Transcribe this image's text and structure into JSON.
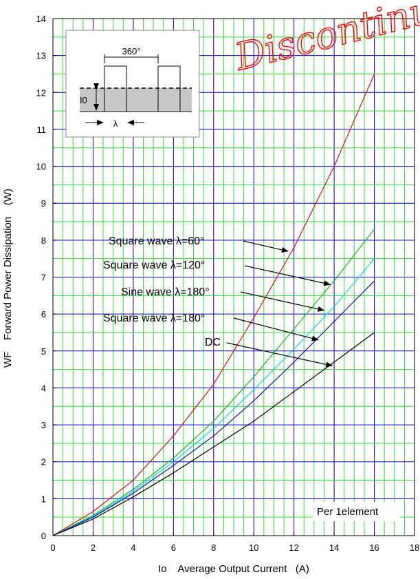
{
  "chart_data": {
    "type": "line",
    "xlabel": "Io    Average Output Current   (A)",
    "ylabel": "WF    Forward Power Dissipation    (W)",
    "xlim": [
      0,
      18
    ],
    "ylim": [
      0,
      14
    ],
    "x_ticks": [
      "0",
      "2",
      "4",
      "6",
      "8",
      "10",
      "12",
      "14",
      "16",
      "18"
    ],
    "y_ticks": [
      "0",
      "1",
      "2",
      "3",
      "4",
      "5",
      "6",
      "7",
      "8",
      "9",
      "10",
      "11",
      "12",
      "13",
      "14"
    ],
    "grid": true,
    "minor_grid_color": "#33dd33",
    "major_grid_color": "#0000cc",
    "series": [
      {
        "name": "Square wave  λ=60°",
        "color": "#e01010",
        "x": [
          0,
          2,
          4,
          6,
          8,
          10,
          12,
          14,
          16
        ],
        "y": [
          0,
          0.65,
          1.5,
          2.7,
          4.1,
          5.9,
          7.8,
          10.0,
          12.5
        ]
      },
      {
        "name": "Square wave  λ=120°",
        "color": "#10c010",
        "x": [
          0,
          2,
          4,
          6,
          8,
          10,
          12,
          14,
          16
        ],
        "y": [
          0,
          0.55,
          1.25,
          2.1,
          3.1,
          4.3,
          5.6,
          6.9,
          8.3
        ]
      },
      {
        "name": "Sine wave  λ=180°",
        "color": "#00d8f0",
        "x": [
          0,
          2,
          4,
          6,
          8,
          10,
          12,
          14,
          16
        ],
        "y": [
          0,
          0.52,
          1.2,
          2.0,
          2.9,
          3.95,
          5.05,
          6.2,
          7.5
        ]
      },
      {
        "name": "Square wave  λ=180°",
        "color": "#1010c8",
        "x": [
          0,
          2,
          4,
          6,
          8,
          10,
          12,
          14,
          16
        ],
        "y": [
          0,
          0.5,
          1.15,
          1.9,
          2.7,
          3.65,
          4.7,
          5.8,
          6.9
        ]
      },
      {
        "name": "DC",
        "color": "#000000",
        "x": [
          0,
          2,
          4,
          6,
          8,
          10,
          12,
          14,
          16
        ],
        "y": [
          0,
          0.45,
          1.05,
          1.7,
          2.4,
          3.1,
          3.9,
          4.7,
          5.5
        ]
      }
    ],
    "annotations": [
      {
        "text": "Square wave  λ=60°",
        "arrow_to": [
          11.7,
          7.7
        ]
      },
      {
        "text": "Square wave  λ=120°",
        "arrow_to": [
          13.8,
          6.8
        ]
      },
      {
        "text": "Sine wave  λ=180°",
        "arrow_to": [
          13.5,
          6.1
        ]
      },
      {
        "text": "Square wave  λ=180°",
        "arrow_to": [
          13.2,
          5.3
        ]
      },
      {
        "text": "DC",
        "arrow_to": [
          13.9,
          4.6
        ]
      }
    ],
    "note": "Per 1element",
    "inset": {
      "angle_label": "360°",
      "current_label": "I0",
      "width_label": "λ"
    }
  },
  "watermark": "Discontinued"
}
